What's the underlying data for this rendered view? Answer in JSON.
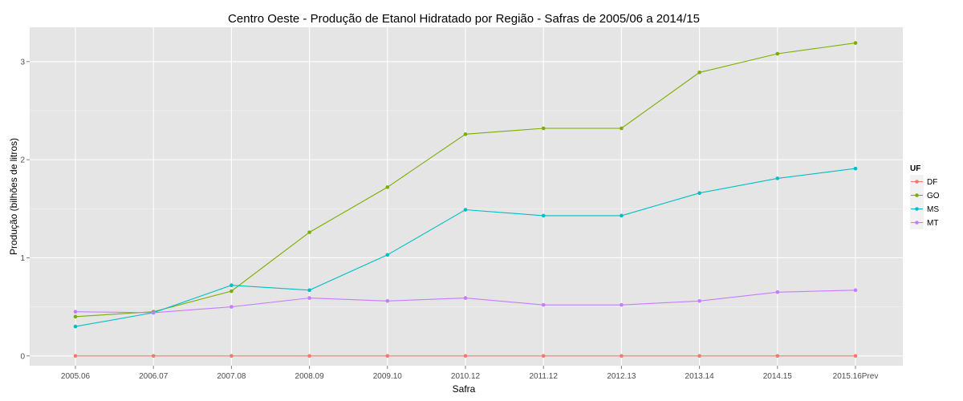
{
  "chart_data": {
    "type": "line",
    "title": "Centro Oeste  - Produção de Etanol Hidratado por Região - Safras de 2005/06 a 2014/15",
    "xlabel": "Safra",
    "ylabel": "Produção (bilhões de litros)",
    "categories": [
      "2005.06",
      "2006.07",
      "2007.08",
      "2008.09",
      "2009.10",
      "2010.12",
      "2011.12",
      "2012.13",
      "2013.14",
      "2014.15",
      "2015.16Prev"
    ],
    "ylim": [
      -0.1,
      3.35
    ],
    "yticks": [
      0,
      1,
      2,
      3
    ],
    "grid": true,
    "legend_title": "UF",
    "legend_position": "right",
    "series": [
      {
        "name": "DF",
        "color": "#F8766D",
        "values": [
          0,
          0,
          0,
          0,
          0,
          0,
          0,
          0,
          0,
          0,
          0
        ]
      },
      {
        "name": "GO",
        "color": "#7CAE00",
        "values": [
          0.4,
          0.45,
          0.66,
          1.26,
          1.72,
          2.26,
          2.32,
          2.32,
          2.89,
          3.08,
          3.19
        ]
      },
      {
        "name": "MS",
        "color": "#00BFC4",
        "values": [
          0.3,
          0.44,
          0.72,
          0.67,
          1.03,
          1.49,
          1.43,
          1.43,
          1.66,
          1.81,
          1.91
        ]
      },
      {
        "name": "MT",
        "color": "#C77CFF",
        "values": [
          0.45,
          0.44,
          0.5,
          0.59,
          0.56,
          0.59,
          0.52,
          0.52,
          0.56,
          0.65,
          0.67
        ]
      }
    ]
  }
}
